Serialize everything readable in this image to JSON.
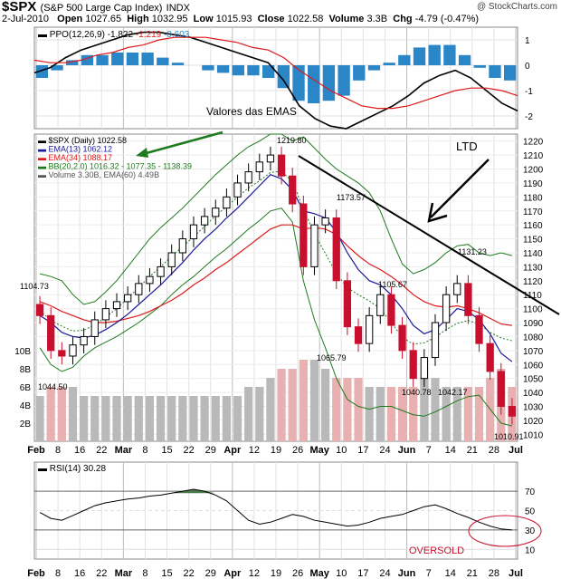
{
  "header": {
    "symbol": "$SPX",
    "name": "(S&P 500 Large Cap Index)",
    "exchange": "INDX",
    "watermark": "@ StockCharts.com",
    "date": "2-Jul-2010",
    "open_label": "Open",
    "open": "1027.65",
    "high_label": "High",
    "high": "1032.95",
    "low_label": "Low",
    "low": "1015.93",
    "close_label": "Close",
    "close": "1022.58",
    "volume_label": "Volume",
    "volume": "3.3B",
    "chg_label": "Chg",
    "chg": "-4.79 (-0.47%)"
  },
  "colors": {
    "ema13": "#1a1a9a",
    "ema34": "#dd1a1a",
    "bb": "#1e7a1e",
    "up": "#000000",
    "down": "#c8102e",
    "vol_up": "#b9b9b9",
    "vol_down": "#e8b0b0",
    "ppo_hist": "#2b86c8",
    "annotation": "#c8102e",
    "arrow_green": "#1e7a1e"
  },
  "chart_data": [
    {
      "type": "line",
      "title": "PPO(12,26,9)",
      "legend": [
        "PPO(12,26,9) -1.822",
        "-1.219",
        "-0.603"
      ],
      "series": [
        {
          "name": "PPO(12,26,9)",
          "values": [
            -0.3,
            -0.1,
            0.3,
            0.6,
            0.8,
            1.0,
            1.2,
            1.3,
            1.3,
            1.2,
            1.1,
            0.9,
            0.7,
            0.5,
            0.3,
            0.1,
            -0.6,
            -1.6,
            -2.1,
            -2.4,
            -2.5,
            -2.2,
            -1.9,
            -1.6,
            -1.2,
            -0.7,
            -0.4,
            -0.2,
            -0.5,
            -1.0,
            -1.5,
            -1.8
          ]
        },
        {
          "name": "-1.219",
          "values": [
            0.2,
            0.1,
            0.1,
            0.2,
            0.4,
            0.5,
            0.7,
            0.8,
            1.0,
            1.1,
            1.1,
            1.1,
            1.0,
            0.9,
            0.7,
            0.6,
            0.3,
            -0.2,
            -0.6,
            -1.0,
            -1.3,
            -1.6,
            -1.7,
            -1.7,
            -1.6,
            -1.4,
            -1.2,
            -1.0,
            -0.9,
            -0.9,
            -1.0,
            -1.2
          ]
        }
      ],
      "histogram": [
        -0.5,
        -0.2,
        0.2,
        0.4,
        0.4,
        0.5,
        0.5,
        0.5,
        0.3,
        0.1,
        0.0,
        -0.2,
        -0.3,
        -0.4,
        -0.4,
        -0.5,
        -0.9,
        -1.4,
        -1.5,
        -1.4,
        -1.2,
        -0.6,
        -0.2,
        0.1,
        0.4,
        0.7,
        0.8,
        0.8,
        0.4,
        -0.1,
        -0.5,
        -0.6
      ],
      "ylim": [
        -2.5,
        1.5
      ],
      "y_ticks": [
        1,
        0,
        -1,
        -2
      ],
      "annotation": "Valores das EMAS"
    },
    {
      "type": "line",
      "title": "$SPX (Daily) 1022.58",
      "legend": [
        "$SPX (Daily) 1022.58",
        "EMA(13) 1062.12",
        "EMA(34) 1088.17",
        "BB(20,2.0) 1016.32 - 1077.35 - 1138.39",
        "Volume 3.30B, EMA(60) 4.49B"
      ],
      "x_labels": [
        "Feb",
        "8",
        "16",
        "22",
        "Mar",
        "8",
        "15",
        "22",
        "29",
        "Apr",
        "12",
        "19",
        "26",
        "May",
        "10",
        "17",
        "24",
        "Jun",
        "7",
        "14",
        "21",
        "28",
        "Jul"
      ],
      "close": [
        1095,
        1070,
        1066,
        1074,
        1080,
        1092,
        1100,
        1105,
        1110,
        1118,
        1123,
        1130,
        1140,
        1150,
        1160,
        1166,
        1172,
        1180,
        1190,
        1198,
        1205,
        1210,
        1195,
        1175,
        1130,
        1160,
        1165,
        1120,
        1087,
        1075,
        1095,
        1110,
        1088,
        1070,
        1050,
        1065,
        1090,
        1110,
        1118,
        1095,
        1075,
        1055,
        1030,
        1023
      ],
      "ema13": [
        1095,
        1090,
        1083,
        1080,
        1079,
        1081,
        1085,
        1090,
        1096,
        1103,
        1110,
        1117,
        1125,
        1133,
        1142,
        1150,
        1157,
        1165,
        1172,
        1180,
        1188,
        1196,
        1193,
        1185,
        1170,
        1168,
        1165,
        1155,
        1140,
        1128,
        1120,
        1117,
        1110,
        1100,
        1088,
        1082,
        1085,
        1092,
        1100,
        1098,
        1092,
        1082,
        1068,
        1062
      ],
      "ema34": [
        1105,
        1102,
        1098,
        1095,
        1092,
        1090,
        1090,
        1091,
        1093,
        1095,
        1098,
        1102,
        1106,
        1111,
        1117,
        1122,
        1128,
        1133,
        1139,
        1145,
        1151,
        1157,
        1160,
        1160,
        1157,
        1158,
        1157,
        1153,
        1145,
        1138,
        1132,
        1128,
        1123,
        1117,
        1110,
        1105,
        1102,
        1101,
        1102,
        1100,
        1097,
        1093,
        1089,
        1088
      ],
      "bb_upper": [
        1125,
        1123,
        1120,
        1110,
        1103,
        1105,
        1112,
        1120,
        1130,
        1140,
        1150,
        1158,
        1165,
        1172,
        1180,
        1188,
        1196,
        1203,
        1210,
        1216,
        1220,
        1225,
        1225,
        1220,
        1223,
        1215,
        1207,
        1200,
        1195,
        1190,
        1183,
        1170,
        1150,
        1132,
        1125,
        1128,
        1133,
        1140,
        1145,
        1146,
        1140,
        1138,
        1140,
        1138
      ],
      "bb_lower": [
        1072,
        1060,
        1055,
        1058,
        1066,
        1072,
        1076,
        1080,
        1085,
        1090,
        1096,
        1102,
        1110,
        1117,
        1123,
        1130,
        1137,
        1143,
        1150,
        1157,
        1163,
        1170,
        1172,
        1162,
        1120,
        1092,
        1072,
        1050,
        1035,
        1030,
        1028,
        1030,
        1030,
        1027,
        1024,
        1023,
        1026,
        1030,
        1034,
        1037,
        1038,
        1028,
        1018,
        1016
      ],
      "volume_relative": [
        5,
        6,
        6,
        6,
        5,
        5,
        5,
        5,
        5,
        5,
        5,
        5,
        5,
        5,
        5,
        5,
        5,
        5,
        5,
        6,
        6,
        7,
        8,
        8,
        9,
        9,
        8,
        7,
        7,
        7,
        6,
        6,
        6,
        6,
        6,
        7,
        7,
        6,
        6,
        6,
        6,
        7,
        8,
        6
      ],
      "y_ticks": [
        1220,
        1210,
        1200,
        1190,
        1180,
        1170,
        1160,
        1150,
        1140,
        1130,
        1120,
        1110,
        1100,
        1090,
        1080,
        1070,
        1060,
        1050,
        1040,
        1030,
        1020,
        1010
      ],
      "ylim": [
        1005,
        1225
      ],
      "volume_ticks": [
        "10B",
        "8B",
        "6B",
        "4B",
        "2B"
      ],
      "price_labels": [
        "1219.80",
        "1104.73",
        "1044.50",
        "1173.57",
        "1065.79",
        "1105.67",
        "1131.23",
        "1040.78",
        "1042.17",
        "1010.91"
      ],
      "annotation": "LTD"
    },
    {
      "type": "line",
      "title": "RSI(14)",
      "legend": [
        "RSI(14) 30.28"
      ],
      "series": [
        {
          "name": "RSI(14)",
          "values": [
            48,
            42,
            40,
            45,
            50,
            55,
            58,
            60,
            62,
            63,
            65,
            66,
            68,
            70,
            72,
            70,
            66,
            60,
            50,
            40,
            36,
            38,
            42,
            46,
            44,
            40,
            38,
            36,
            34,
            35,
            38,
            42,
            44,
            46,
            50,
            54,
            56,
            52,
            47,
            43,
            38,
            34,
            31,
            30
          ]
        }
      ],
      "ylim": [
        0,
        100
      ],
      "y_ticks": [
        70,
        50,
        30,
        10
      ],
      "x_labels": [
        "Feb",
        "8",
        "16",
        "22",
        "Mar",
        "8",
        "15",
        "22",
        "29",
        "Apr",
        "12",
        "19",
        "26",
        "May",
        "10",
        "17",
        "24",
        "Jun",
        "7",
        "14",
        "21",
        "28",
        "Jul"
      ],
      "annotation": "OVERSOLD"
    }
  ]
}
